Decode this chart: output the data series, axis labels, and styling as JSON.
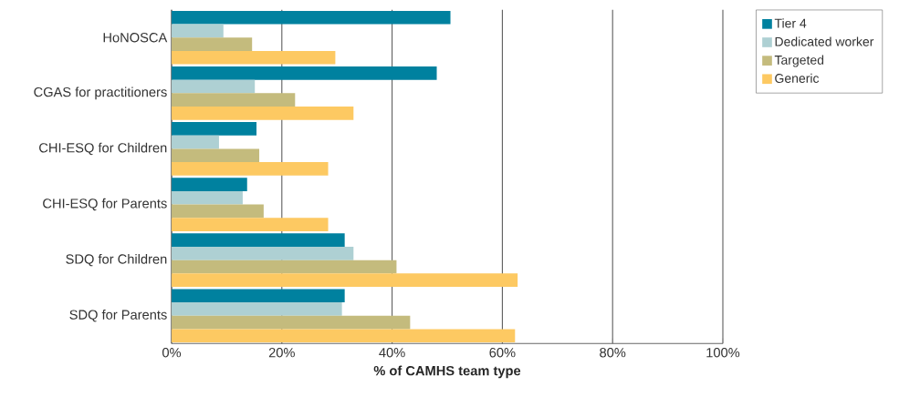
{
  "chart_data": {
    "type": "bar",
    "orientation": "horizontal",
    "xlabel": "% of CAMHS team type",
    "categories": [
      "HoNOSCA",
      "CGAS for practitioners",
      "CHI-ESQ for Children",
      "CHI-ESQ for Parents",
      "SDQ for Children",
      "SDQ for Parents"
    ],
    "series": [
      {
        "name": "Tier 4",
        "color": "#00819f",
        "values": [
          50.6,
          48.1,
          15.4,
          13.7,
          31.4,
          31.4
        ]
      },
      {
        "name": "Dedicated worker",
        "color": "#aed0d3",
        "values": [
          9.4,
          15.1,
          8.6,
          12.9,
          33.0,
          30.9
        ]
      },
      {
        "name": "Targeted",
        "color": "#c4bb7d",
        "values": [
          14.6,
          22.4,
          15.9,
          16.7,
          40.8,
          43.3
        ]
      },
      {
        "name": "Generic",
        "color": "#fdc962",
        "values": [
          29.7,
          33.0,
          28.4,
          28.4,
          62.8,
          62.3
        ]
      }
    ],
    "xlim": [
      0,
      100
    ],
    "xticks": [
      {
        "value": 0,
        "label": "0%"
      },
      {
        "value": 20,
        "label": "20%"
      },
      {
        "value": 40,
        "label": "40%"
      },
      {
        "value": 60,
        "label": "60%"
      },
      {
        "value": 80,
        "label": "80%"
      },
      {
        "value": 100,
        "label": "100%"
      }
    ],
    "grid": "x",
    "legend": "right"
  }
}
